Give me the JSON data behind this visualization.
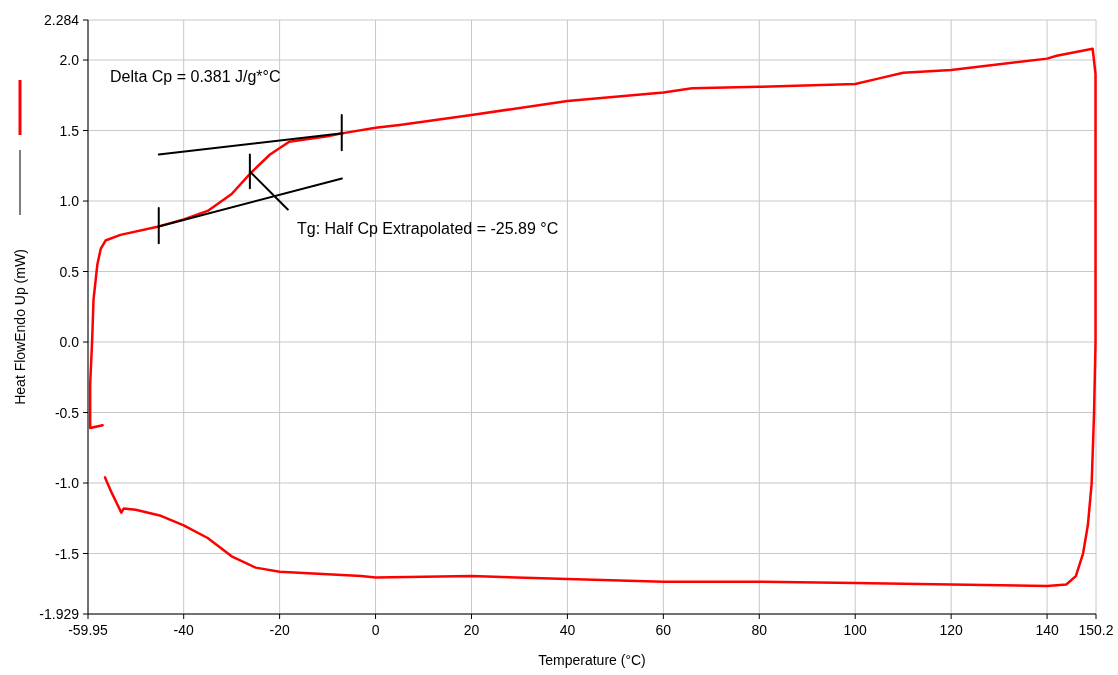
{
  "chart_data": {
    "type": "line",
    "xlabel": "Temperature (°C)",
    "ylabel": "Heat FlowEndo Up (mW)",
    "xlim": [
      -59.95,
      150.2
    ],
    "xticks": [
      -59.95,
      -40,
      -20,
      0,
      20,
      40,
      60,
      80,
      100,
      120,
      140,
      150.2
    ],
    "ylim": [
      -1.929,
      2.284
    ],
    "yticks": [
      -1.929,
      {
        "value": -1.5,
        "label": "-1.5"
      },
      {
        "value": -1,
        "label": "-1.0"
      },
      {
        "value": -0.5,
        "label": "-0.5"
      },
      {
        "value": 0,
        "label": "0.0"
      },
      {
        "value": 0.5,
        "label": "0.5"
      },
      {
        "value": 1,
        "label": "1.0"
      },
      {
        "value": 1.5,
        "label": "1.5"
      },
      {
        "value": 2,
        "label": "2.0"
      },
      2.284
    ],
    "grid": true,
    "marker": "none",
    "line_style": "solid",
    "annotations": [
      "Delta Cp = 0.381 J/g*°C",
      "Tg: Half Cp Extrapolated = -25.89 °C"
    ],
    "series": [
      {
        "color": "#ff0000",
        "x": [
          -56.9,
          -59.5,
          -59.5,
          -59.1,
          -58.8,
          -58.0,
          -57.3,
          -56.3,
          -53.2,
          -45.2,
          -40,
          -35,
          -30,
          -26,
          -22,
          -18,
          -10,
          -7,
          0,
          5,
          20,
          40,
          60,
          66,
          80,
          100,
          105,
          110,
          120,
          140,
          142,
          149.5,
          150.1,
          150.1,
          149.8,
          149.3,
          148.5,
          147.5,
          146,
          144,
          140,
          120,
          100,
          80,
          60,
          40,
          20,
          0,
          -3,
          -20,
          -25,
          -30,
          -35,
          -40,
          -45,
          -50,
          -52.5,
          -53,
          -54,
          -55,
          -56.4
        ],
        "values": [
          -0.59,
          -0.61,
          -0.3,
          0,
          0.3,
          0.55,
          0.66,
          0.72,
          0.76,
          0.82,
          0.87,
          0.93,
          1.05,
          1.2,
          1.33,
          1.42,
          1.46,
          1.48,
          1.52,
          1.54,
          1.61,
          1.71,
          1.77,
          1.8,
          1.81,
          1.83,
          1.87,
          1.91,
          1.93,
          2.01,
          2.03,
          2.08,
          1.9,
          0,
          -0.5,
          -1.0,
          -1.3,
          -1.5,
          -1.66,
          -1.72,
          -1.73,
          -1.72,
          -1.71,
          -1.7,
          -1.7,
          -1.68,
          -1.66,
          -1.67,
          -1.66,
          -1.63,
          -1.6,
          -1.52,
          -1.39,
          -1.3,
          -1.23,
          -1.19,
          -1.18,
          -1.21,
          -1.14,
          -1.07,
          -0.96
        ]
      },
      {
        "color": "#000000",
        "x": [
          -45.2,
          -6.9
        ],
        "values": [
          1.33,
          1.48
        ]
      },
      {
        "color": "#000000",
        "x": [
          -45.2,
          -7
        ],
        "values": [
          0.82,
          1.16
        ]
      },
      {
        "color": "#000000",
        "x": [
          -26.2,
          -18.3
        ],
        "values": [
          1.21,
          0.94
        ]
      },
      {
        "color": "#000000",
        "x": [
          -45.2,
          -45.2
        ],
        "values": [
          0.95,
          0.7
        ]
      },
      {
        "color": "#000000",
        "x": [
          -26.2,
          -26.2
        ],
        "values": [
          1.33,
          1.09
        ]
      },
      {
        "color": "#000000",
        "x": [
          -7.05,
          -7.05
        ],
        "values": [
          1.61,
          1.36
        ]
      }
    ]
  }
}
